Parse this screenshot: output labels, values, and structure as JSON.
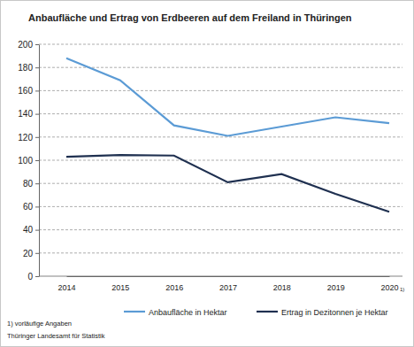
{
  "chart_data": {
    "type": "line",
    "title": "Anbaufläche und Ertrag von Erdbeeren auf dem Freiland in Thüringen",
    "categories": [
      "2014",
      "2015",
      "2016",
      "2017",
      "2018",
      "2019",
      "2020"
    ],
    "series": [
      {
        "name": "Anbaufläche in Hektar",
        "color": "#5b9bd5",
        "values": [
          188,
          169,
          130,
          121,
          129,
          137,
          132
        ]
      },
      {
        "name": "Ertrag in Dezitonnen je Hektar",
        "color": "#1f3050",
        "values": [
          103,
          104.5,
          104,
          81,
          88,
          71,
          55.5
        ]
      }
    ],
    "ylim": [
      0,
      200
    ],
    "yticks": [
      0,
      20,
      40,
      60,
      80,
      100,
      120,
      140,
      160,
      180,
      200
    ],
    "grid": true,
    "legend": "bottom",
    "annotations": [
      "1)",
      "1) vorläufige Angaben",
      "Thüringer Landesamt für Statistik"
    ]
  }
}
